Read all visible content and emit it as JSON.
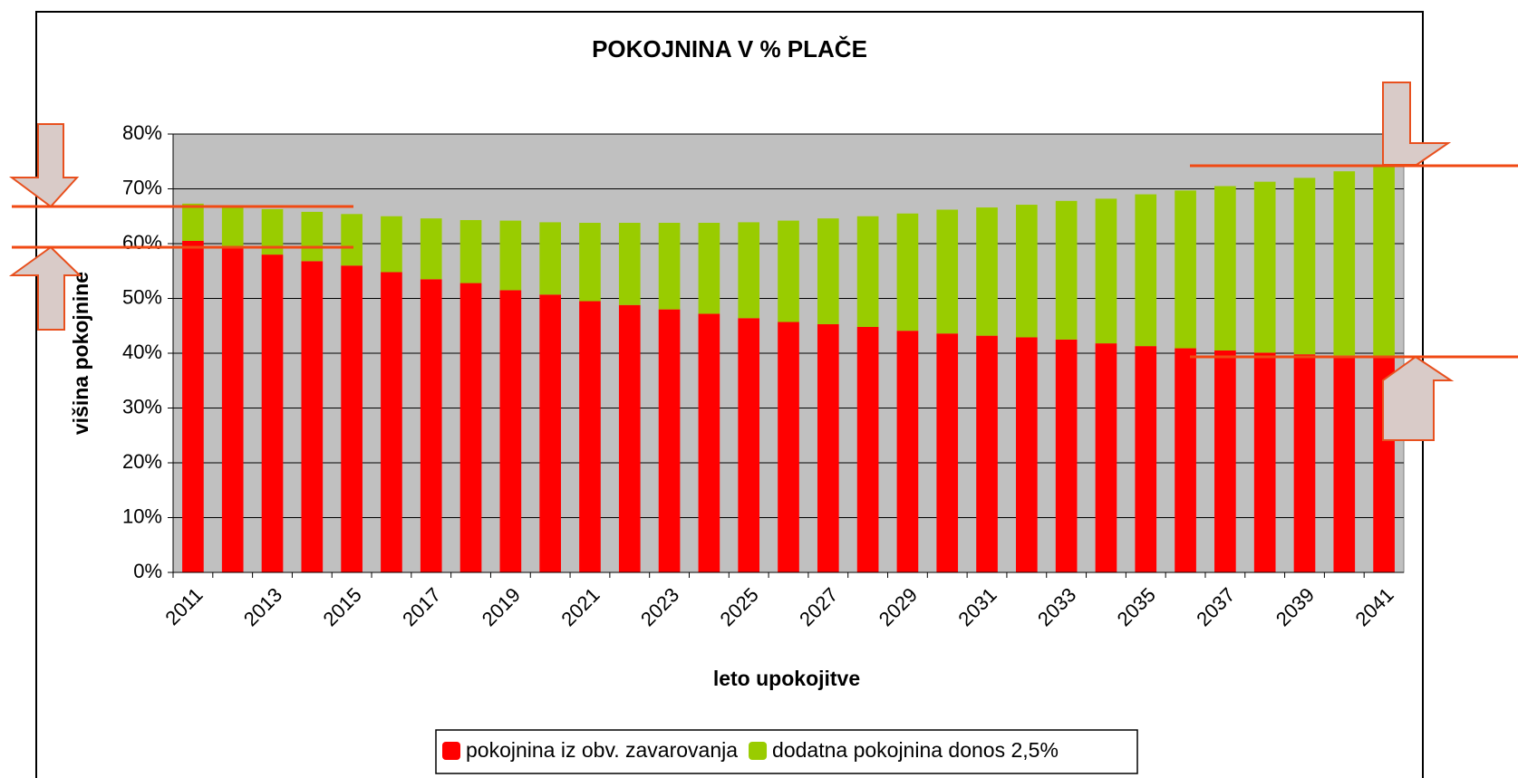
{
  "chart_data": {
    "type": "stacked_bar",
    "title": "POKOJNINA V % PLAČE",
    "x_label": "leto upokojitve",
    "y_label": "višina pokojnine",
    "categories": [
      "2011",
      null,
      "2013",
      null,
      "2015",
      null,
      "2017",
      null,
      "2019",
      null,
      "2021",
      null,
      "2023",
      null,
      "2025",
      null,
      "2027",
      null,
      "2029",
      null,
      "2031",
      null,
      "2033",
      null,
      "2035",
      null,
      "2037",
      null,
      "2039",
      null,
      "2041"
    ],
    "series": [
      {
        "name": "pokojnina iz obv. zavarovanja",
        "color": "#ff0000",
        "values": [
          60.5,
          59.5,
          58,
          56.8,
          56,
          54.8,
          53.5,
          52.8,
          51.5,
          50.7,
          49.5,
          48.8,
          48,
          47.2,
          46.4,
          45.7,
          45.3,
          44.8,
          44.1,
          43.6,
          43.2,
          42.9,
          42.5,
          41.8,
          41.3,
          40.9,
          40.5,
          40.1,
          39.8,
          39.6,
          39.5
        ]
      },
      {
        "name": "dodatna pokojnina donos 2,5%",
        "color": "#99cc00",
        "values": [
          6.8,
          7.5,
          8.3,
          9.0,
          9.4,
          10.2,
          11.1,
          11.5,
          12.7,
          13.2,
          14.3,
          15.0,
          15.8,
          16.6,
          17.5,
          18.5,
          19.3,
          20.2,
          21.4,
          22.6,
          23.4,
          24.2,
          25.3,
          26.4,
          27.7,
          28.8,
          30.0,
          31.2,
          32.2,
          33.6,
          34.5
        ]
      }
    ],
    "ylim": [
      0,
      80
    ],
    "yticks": [
      {
        "value": 0,
        "label": "0%"
      },
      {
        "value": 10,
        "label": "10%"
      },
      {
        "value": 20,
        "label": "20%"
      },
      {
        "value": 30,
        "label": "30%"
      },
      {
        "value": 40,
        "label": "40%"
      },
      {
        "value": 50,
        "label": "50%"
      },
      {
        "value": 60,
        "label": "60%"
      },
      {
        "value": 70,
        "label": "70%"
      },
      {
        "value": 80,
        "label": "80%"
      }
    ],
    "grid": true,
    "legend": "bottom"
  }
}
